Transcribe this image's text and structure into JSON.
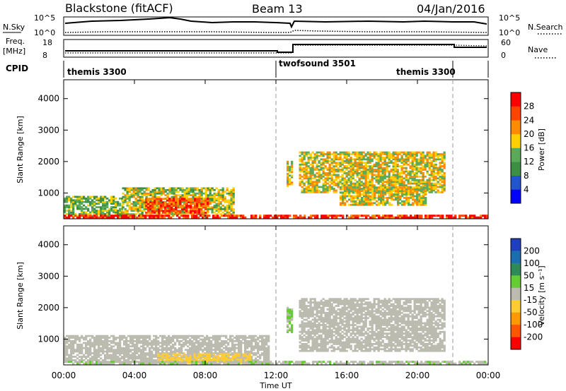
{
  "header": {
    "station": "Blackstone (fitACF)",
    "beam": "Beam 13",
    "date": "04/Jan/2016"
  },
  "top_panel": {
    "left_label": "N.Sky",
    "right_label": "N.Search",
    "left_ticks": [
      "10^5",
      "10^0"
    ],
    "right_ticks": [
      "10^5",
      "10^0"
    ]
  },
  "freq_panel": {
    "left_label": "Freq.",
    "left_unit": "[MHz]",
    "right_label": "Nave",
    "left_ticks": [
      "18",
      "8"
    ],
    "right_ticks": [
      "60",
      "0"
    ]
  },
  "cpid": {
    "label": "CPID",
    "modes": [
      {
        "name": "themis 3300",
        "start_h": 0,
        "end_h": 12
      },
      {
        "name": "twofsound 3501",
        "start_h": 12,
        "end_h": 22
      },
      {
        "name": "themis 3300",
        "start_h": 22,
        "end_h": 24
      }
    ]
  },
  "colors": {
    "power": [
      "#0000ff",
      "#2255cc",
      "#3d8f45",
      "#5aaa5a",
      "#ffd000",
      "#ff8c00",
      "#ff4400",
      "#ff0000"
    ],
    "velocity": [
      "#1f3fbf",
      "#1a6eb0",
      "#2e8b57",
      "#66cc33",
      "#bbbbb0",
      "#ffcc33",
      "#ff9900",
      "#ff5500",
      "#ff0000"
    ]
  },
  "chart_data": [
    {
      "type": "heatmap",
      "panel": "power",
      "ylabel": "Slant Range [km]",
      "yticks": [
        1000,
        2000,
        3000,
        4000
      ],
      "ylim": [
        180,
        4600
      ],
      "xlim": [
        0,
        24
      ],
      "colorbar": {
        "label": "Power [dB]",
        "ticks": [
          "4",
          "8",
          "12",
          "16",
          "20",
          "24",
          "28"
        ],
        "range": [
          0,
          32
        ]
      },
      "echo_regions": [
        {
          "t0": 0.0,
          "t1": 3.3,
          "r0": 250,
          "r1": 900,
          "level": 14
        },
        {
          "t0": 3.3,
          "t1": 9.6,
          "r0": 300,
          "r1": 1150,
          "level": 16
        },
        {
          "t0": 4.6,
          "t1": 8.2,
          "r0": 350,
          "r1": 800,
          "level": 26
        },
        {
          "t0": 0.0,
          "t1": 24.0,
          "r0": 200,
          "r1": 300,
          "level": 28
        },
        {
          "t0": 13.3,
          "t1": 21.5,
          "r0": 1000,
          "r1": 2300,
          "level": 18
        },
        {
          "t0": 15.6,
          "t1": 20.5,
          "r0": 600,
          "r1": 1200,
          "level": 18
        },
        {
          "t0": 12.6,
          "t1": 12.9,
          "r0": 1200,
          "r1": 2000,
          "level": 18
        }
      ]
    },
    {
      "type": "heatmap",
      "panel": "velocity",
      "ylabel": "Slant Range [km]",
      "yticks": [
        1000,
        2000,
        3000,
        4000
      ],
      "ylim": [
        180,
        4600
      ],
      "xlim": [
        0,
        24
      ],
      "colorbar": {
        "label": "Velocity [m s⁻¹]",
        "ticks": [
          "200",
          "100",
          "50",
          "15",
          "-15",
          "-50",
          "-100",
          "-200"
        ],
        "range": [
          -250,
          250
        ]
      },
      "echo_regions": [
        {
          "t0": 0.0,
          "t1": 11.6,
          "r0": 250,
          "r1": 1100,
          "level": 0
        },
        {
          "t0": 5.3,
          "t1": 10.5,
          "r0": 220,
          "r1": 550,
          "level": -40
        },
        {
          "t0": 12.6,
          "t1": 12.9,
          "r0": 1200,
          "r1": 2000,
          "level": 30
        },
        {
          "t0": 13.3,
          "t1": 21.5,
          "r0": 600,
          "r1": 2300,
          "level": 0
        },
        {
          "t0": 0.0,
          "t1": 24.0,
          "r0": 200,
          "r1": 300,
          "level": 20
        }
      ]
    }
  ],
  "x_axis": {
    "label": "Time UT",
    "ticks": [
      "00:00",
      "04:00",
      "08:00",
      "12:00",
      "16:00",
      "20:00",
      "00:00"
    ]
  }
}
